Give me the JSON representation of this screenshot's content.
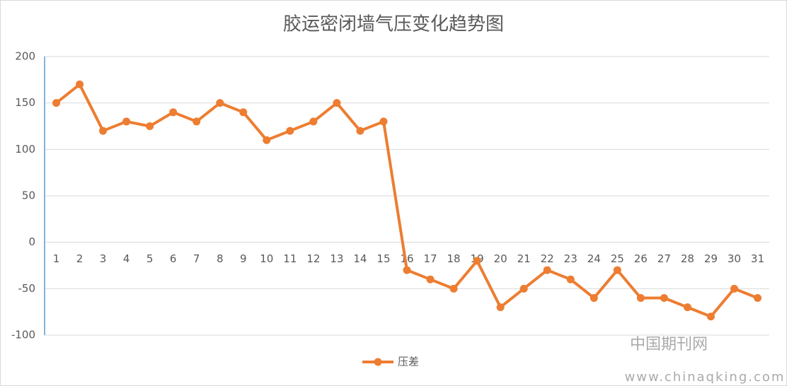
{
  "chart_data": {
    "type": "line",
    "title": "胶运密闭墙气压变化趋势图",
    "categories": [
      "1",
      "2",
      "3",
      "4",
      "5",
      "6",
      "7",
      "8",
      "9",
      "10",
      "11",
      "12",
      "13",
      "14",
      "15",
      "16",
      "17",
      "18",
      "19",
      "20",
      "21",
      "22",
      "23",
      "24",
      "25",
      "26",
      "27",
      "28",
      "29",
      "30",
      "31"
    ],
    "series": [
      {
        "name": "压差",
        "color": "#ed7d31",
        "values": [
          150,
          170,
          120,
          130,
          125,
          140,
          130,
          150,
          140,
          110,
          120,
          130,
          150,
          120,
          130,
          -30,
          -40,
          -50,
          -20,
          -70,
          -50,
          -30,
          -40,
          -60,
          -30,
          -60,
          -60,
          -70,
          -80,
          -50,
          -60
        ]
      }
    ],
    "ylim": [
      -100,
      200
    ],
    "yticks": [
      -100,
      -50,
      0,
      50,
      100,
      150,
      200
    ],
    "grid": true,
    "legend": "bottom",
    "watermark": [
      "中国期刊网",
      "www.chinaqking.com"
    ]
  }
}
